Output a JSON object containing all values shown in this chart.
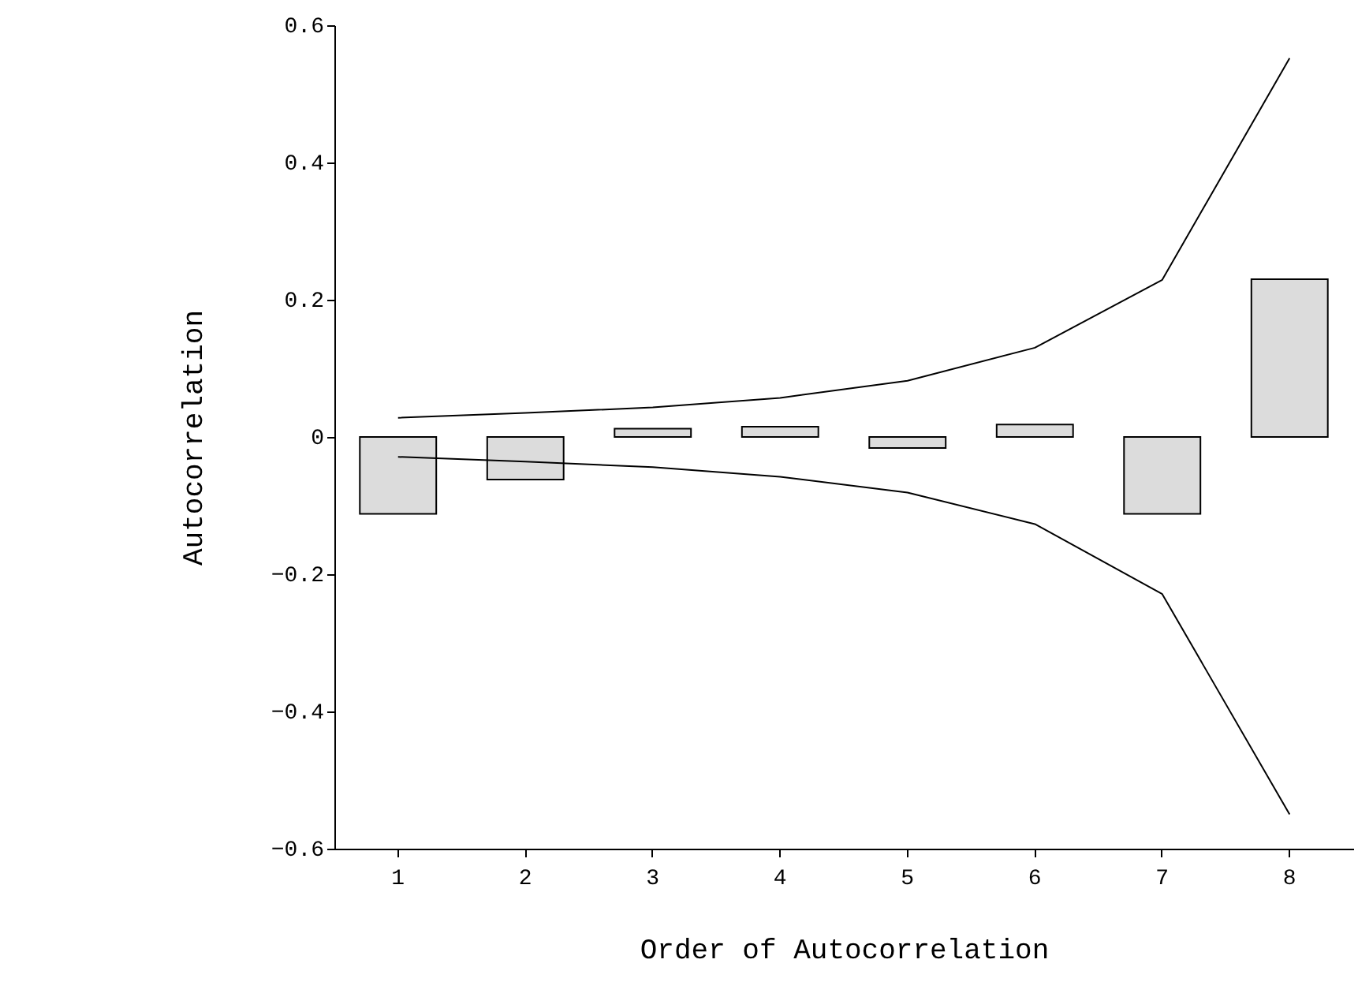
{
  "chart_data": {
    "type": "bar",
    "xlabel": "Order of Autocorrelation",
    "ylabel": "Autocorrelation",
    "categories": [
      "1",
      "2",
      "3",
      "4",
      "5",
      "6",
      "7",
      "8"
    ],
    "series": [
      {
        "color": "#dcdcdc",
        "values": [
          -0.112,
          -0.062,
          0.012,
          0.015,
          -0.016,
          0.018,
          -0.112,
          0.23
        ]
      },
      {
        "type": "line",
        "color": "#000000",
        "values": [
          0.028,
          0.035,
          0.043,
          0.057,
          0.082,
          0.13,
          0.229,
          0.552
        ]
      },
      {
        "type": "line",
        "color": "#000000",
        "values": [
          -0.029,
          -0.036,
          -0.044,
          -0.058,
          -0.081,
          -0.127,
          -0.229,
          -0.55
        ]
      }
    ],
    "ylim": [
      -0.6,
      0.6
    ],
    "yticks": [
      -0.6,
      -0.4,
      -0.2,
      0,
      0.2,
      0.4,
      0.6
    ],
    "grid": false
  }
}
